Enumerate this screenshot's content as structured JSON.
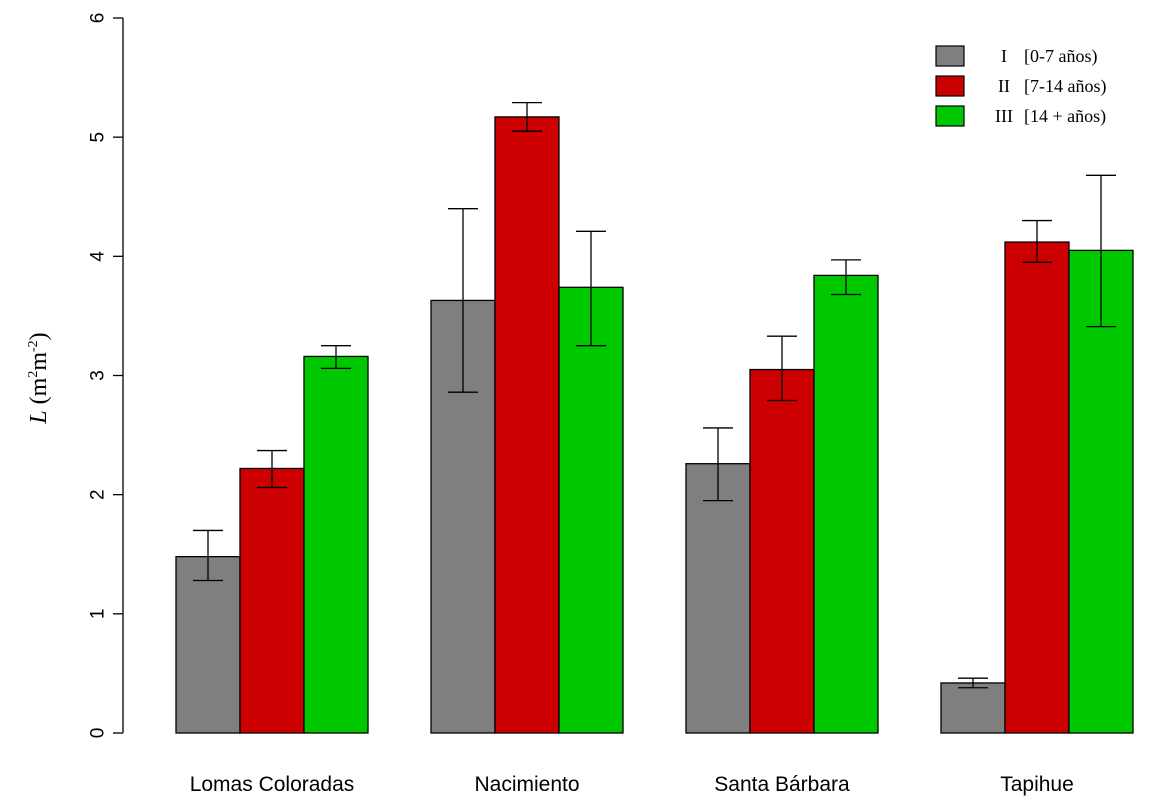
{
  "chart_data": {
    "type": "bar",
    "categories": [
      "Lomas Coloradas",
      "Nacimiento",
      "Santa Bárbara",
      "Tapihue"
    ],
    "series": [
      {
        "name": "I",
        "legend_label": "[0-7 años)",
        "color": "#7f7f7f",
        "values": [
          1.48,
          3.63,
          2.26,
          0.42
        ],
        "err_low": [
          1.28,
          2.86,
          1.95,
          0.38
        ],
        "err_high": [
          1.7,
          4.4,
          2.56,
          0.46
        ]
      },
      {
        "name": "II",
        "legend_label": "[7-14 años)",
        "color": "#cc0000",
        "values": [
          2.22,
          5.17,
          3.05,
          4.12
        ],
        "err_low": [
          2.06,
          5.05,
          2.79,
          3.95
        ],
        "err_high": [
          2.37,
          5.29,
          3.33,
          4.3
        ]
      },
      {
        "name": "III",
        "legend_label": "[14 + años)",
        "color": "#00c800",
        "values": [
          3.16,
          3.74,
          3.84,
          4.05
        ],
        "err_low": [
          3.06,
          3.25,
          3.68,
          3.41
        ],
        "err_high": [
          3.25,
          4.21,
          3.97,
          4.68
        ]
      }
    ],
    "ylim": [
      0,
      6
    ],
    "yticks": [
      "0",
      "1",
      "2",
      "3",
      "4",
      "5",
      "6"
    ],
    "ylabel": {
      "var": "L",
      "open": " (m",
      "sup1": "2",
      "mid": "m",
      "sup2": "-2",
      "close": ")"
    },
    "xlabel": "",
    "title": "",
    "legend_position": "top-right",
    "grid": false,
    "error_bars": true
  }
}
